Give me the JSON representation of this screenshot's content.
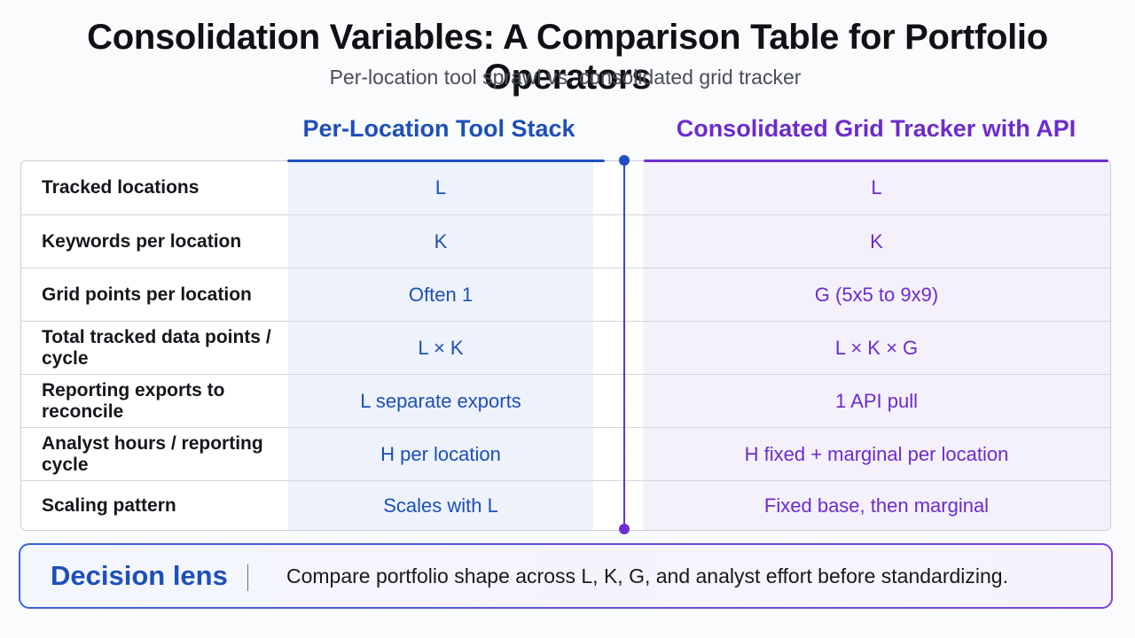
{
  "title": "Consolidation Variables: A Comparison Table for Portfolio Operators",
  "subtitle": "Per-location tool sprawl vs. consolidated grid tracker",
  "columns": {
    "left": "Per-Location Tool Stack",
    "right": "Consolidated Grid Tracker with API"
  },
  "rows": [
    {
      "label": "Tracked locations",
      "left": "L",
      "right": "L"
    },
    {
      "label": "Keywords per location",
      "left": "K",
      "right": "K"
    },
    {
      "label": "Grid points per location",
      "left": "Often 1",
      "right": "G (5x5 to 9x9)"
    },
    {
      "label": "Total tracked data points / cycle",
      "left": "L × K",
      "right": "L × K × G"
    },
    {
      "label": "Reporting exports to reconcile",
      "left": "L separate exports",
      "right": "1 API pull"
    },
    {
      "label": "Analyst hours / reporting cycle",
      "left": "H per location",
      "right": "H fixed + marginal per location"
    },
    {
      "label": "Scaling pattern",
      "left": "Scales with L",
      "right": "Fixed base, then marginal"
    }
  ],
  "decision_lens": {
    "title": "Decision lens",
    "text": "Compare portfolio shape across L, K, G, and analyst effort before standardizing."
  },
  "colors": {
    "left_accent": "#1d4fb8",
    "right_accent": "#6c2ccb"
  }
}
